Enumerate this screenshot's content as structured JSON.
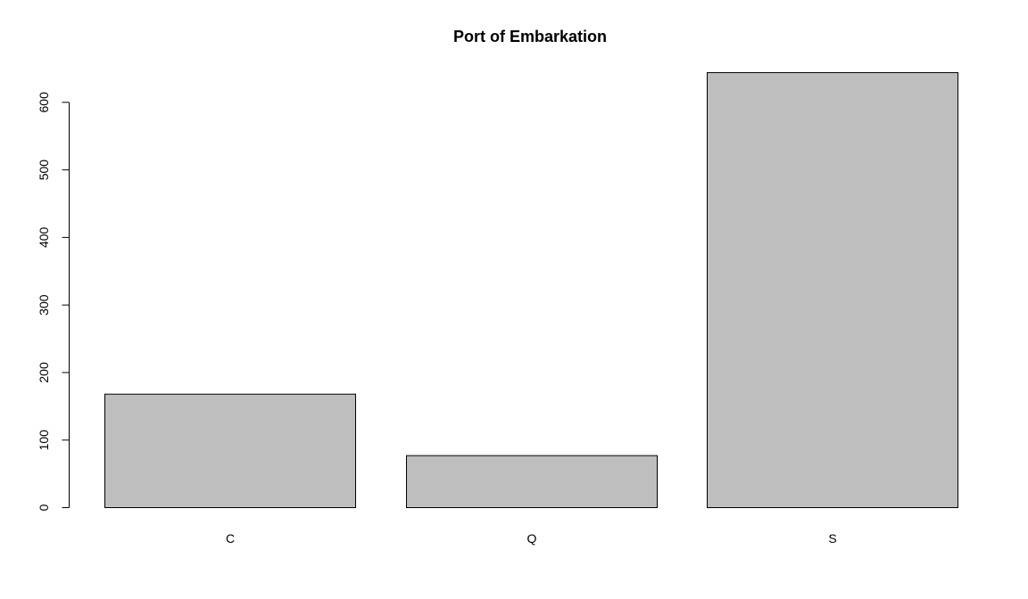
{
  "chart_data": {
    "type": "bar",
    "title": "Port of Embarkation",
    "xlabel": "",
    "ylabel": "",
    "categories": [
      "C",
      "Q",
      "S"
    ],
    "values": [
      168,
      77,
      644
    ],
    "ylim": [
      0,
      644
    ],
    "yticks": [
      0,
      100,
      200,
      300,
      400,
      500,
      600
    ],
    "ytick_labels": [
      "0",
      "100",
      "200",
      "300",
      "400",
      "500",
      "600"
    ],
    "grid": false,
    "bar_color": "#bebebe",
    "border_color": "#000000"
  }
}
